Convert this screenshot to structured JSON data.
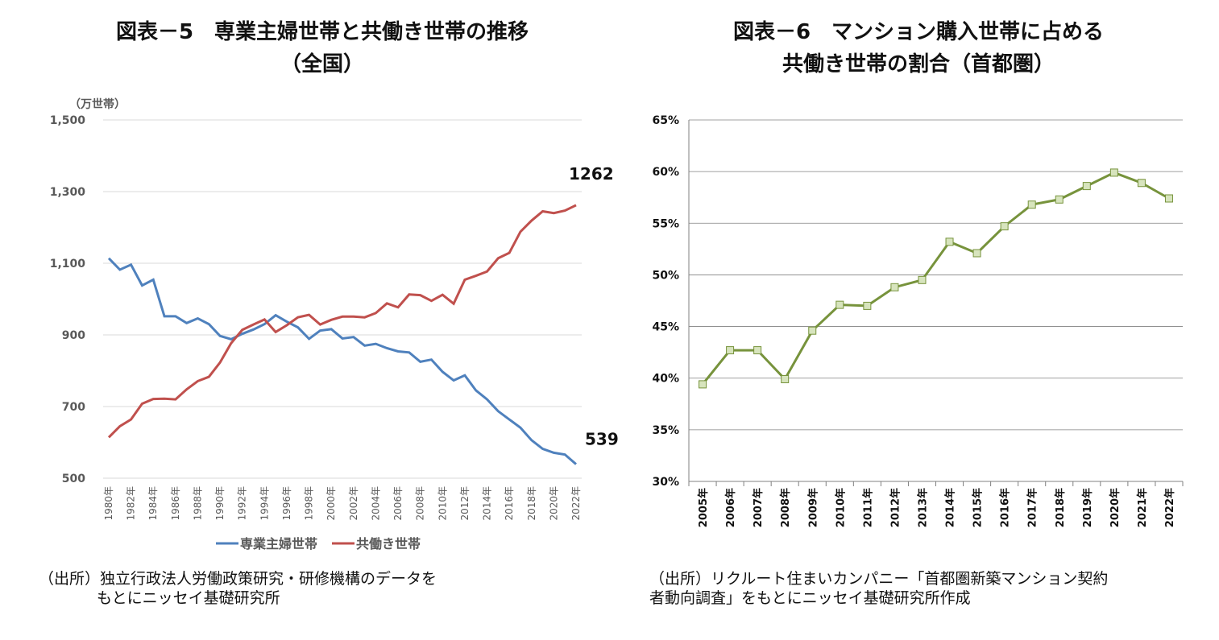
{
  "chart_data": [
    {
      "type": "line",
      "title": "図表－5　専業主婦世帯と共働き世帯の推移",
      "subtitle": "（全国）",
      "ylabel": "（万世帯）",
      "ylim": [
        500,
        1500
      ],
      "yticks": [
        "500",
        "700",
        "900",
        "1,100",
        "1,300",
        "1,500"
      ],
      "ytick_values": [
        500,
        700,
        900,
        1100,
        1300,
        1500
      ],
      "x": [
        1980,
        1981,
        1982,
        1983,
        1984,
        1985,
        1986,
        1987,
        1988,
        1989,
        1990,
        1991,
        1992,
        1993,
        1994,
        1995,
        1996,
        1997,
        1998,
        1999,
        2000,
        2001,
        2002,
        2003,
        2004,
        2005,
        2006,
        2007,
        2008,
        2009,
        2010,
        2011,
        2012,
        2013,
        2014,
        2015,
        2016,
        2017,
        2018,
        2019,
        2020,
        2021,
        2022
      ],
      "xtick_suffix": "年",
      "grid": true,
      "legend": "bottom",
      "series": [
        {
          "name": "専業主婦世帯",
          "color": "#4f81bd",
          "values": [
            1114,
            1082,
            1096,
            1038,
            1054,
            952,
            952,
            933,
            946,
            930,
            897,
            888,
            903,
            915,
            930,
            955,
            937,
            921,
            889,
            912,
            916,
            890,
            894,
            870,
            875,
            863,
            854,
            851,
            825,
            831,
            797,
            773,
            787,
            745,
            720,
            687,
            664,
            641,
            606,
            582,
            571,
            566,
            539
          ],
          "end_label": "539"
        },
        {
          "name": "共働き世帯",
          "color": "#c0504d",
          "values": [
            614,
            645,
            664,
            708,
            721,
            722,
            720,
            748,
            771,
            783,
            823,
            877,
            914,
            929,
            943,
            908,
            927,
            949,
            956,
            929,
            942,
            951,
            951,
            949,
            961,
            988,
            977,
            1013,
            1011,
            995,
            1012,
            987,
            1054,
            1065,
            1077,
            1114,
            1129,
            1188,
            1219,
            1245,
            1240,
            1247,
            1262
          ],
          "end_label": "1262"
        }
      ],
      "source": [
        "（出所）独立行政法人労働政策研究・研修機構のデータを",
        "もとにニッセイ基礎研究所"
      ]
    },
    {
      "type": "line",
      "title": "図表－6　マンション購入世帯に占める",
      "subtitle": "共働き世帯の割合（首都圏）",
      "ylim": [
        30,
        65
      ],
      "yticks": [
        "30%",
        "35%",
        "40%",
        "45%",
        "50%",
        "55%",
        "60%",
        "65%"
      ],
      "ytick_values": [
        30,
        35,
        40,
        45,
        50,
        55,
        60,
        65
      ],
      "x": [
        2005,
        2006,
        2007,
        2008,
        2009,
        2010,
        2011,
        2012,
        2013,
        2014,
        2015,
        2016,
        2017,
        2018,
        2019,
        2020,
        2021,
        2022
      ],
      "xtick_suffix": "年",
      "grid": true,
      "marker": "square",
      "series": [
        {
          "color": "#77933c",
          "marker_fill": "#d7e4bd",
          "values": [
            39.4,
            42.7,
            42.7,
            39.9,
            44.6,
            47.1,
            47.0,
            48.8,
            49.5,
            53.2,
            52.1,
            54.7,
            56.8,
            57.3,
            58.6,
            59.9,
            58.9,
            57.4
          ]
        }
      ],
      "source": [
        "（出所）リクルート住まいカンパニー「首都圏新築マンション契約",
        "者動向調査」をもとにニッセイ基礎研究所作成"
      ]
    }
  ]
}
